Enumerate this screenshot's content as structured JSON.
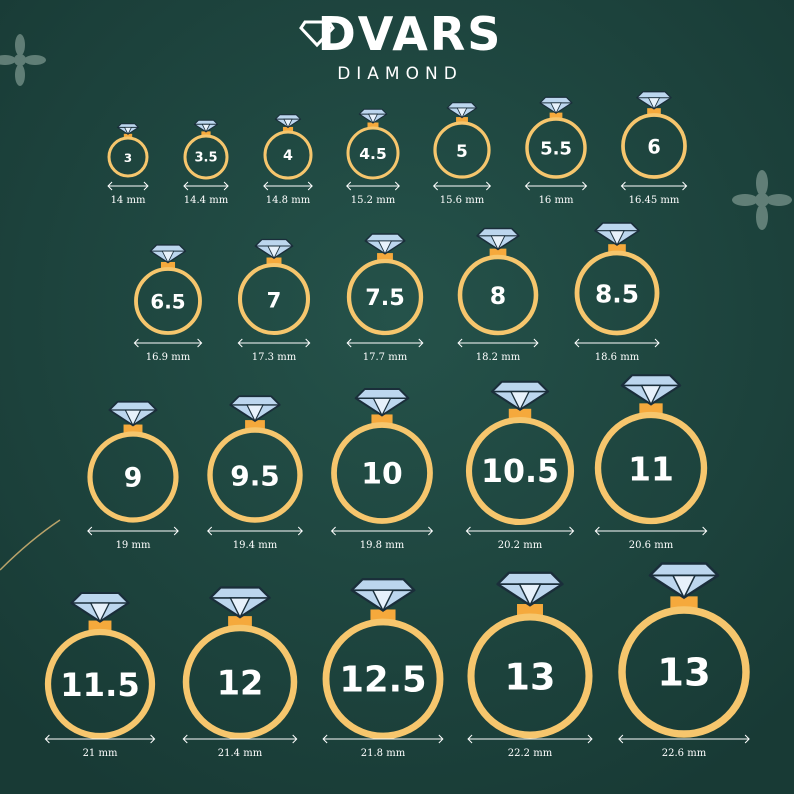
{
  "header": {
    "brand": "DVARS",
    "subtitle": "DIAMOND"
  },
  "rings": [
    {
      "size": "3",
      "mm": "14 mm"
    },
    {
      "size": "3.5",
      "mm": "14.4 mm"
    },
    {
      "size": "4",
      "mm": "14.8 mm"
    },
    {
      "size": "4.5",
      "mm": "15.2 mm"
    },
    {
      "size": "5",
      "mm": "15.6 mm"
    },
    {
      "size": "5.5",
      "mm": "16 mm"
    },
    {
      "size": "6",
      "mm": "16.45 mm"
    },
    {
      "size": "6.5",
      "mm": "16.9 mm"
    },
    {
      "size": "7",
      "mm": "17.3 mm"
    },
    {
      "size": "7.5",
      "mm": "17.7 mm"
    },
    {
      "size": "8",
      "mm": "18.2 mm"
    },
    {
      "size": "8.5",
      "mm": "18.6 mm"
    },
    {
      "size": "9",
      "mm": "19 mm"
    },
    {
      "size": "9.5",
      "mm": "19.4 mm"
    },
    {
      "size": "10",
      "mm": "19.8 mm"
    },
    {
      "size": "10.5",
      "mm": "20.2 mm"
    },
    {
      "size": "11",
      "mm": "20.6 mm"
    },
    {
      "size": "11.5",
      "mm": "21 mm"
    },
    {
      "size": "12",
      "mm": "21.4 mm"
    },
    {
      "size": "12.5",
      "mm": "21.8 mm"
    },
    {
      "size": "13",
      "mm": "22.2 mm"
    },
    {
      "size": "13",
      "mm": "22.6 mm"
    }
  ]
}
